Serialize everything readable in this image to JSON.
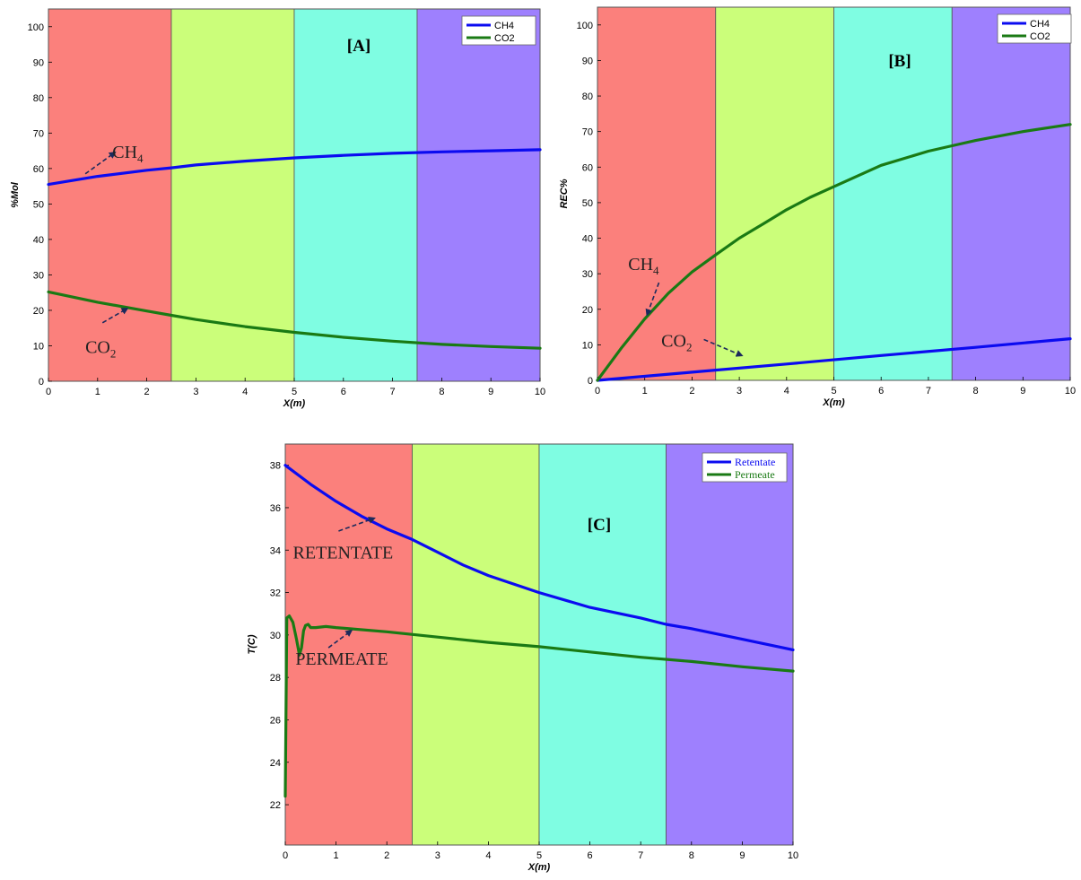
{
  "colors": {
    "zone1": "#fb807c",
    "zone2": "#cbfe7a",
    "zone3": "#7ffde2",
    "zone4": "#9e80fe",
    "ch4": "#0b0bf0",
    "co2": "#1a7a14",
    "arrow": "#1c2a5c"
  },
  "chart_data": [
    {
      "id": "A",
      "type": "line",
      "panel_label": "[A]",
      "xlabel": "X(m)",
      "ylabel": "%Mol",
      "xlim": [
        0,
        10
      ],
      "ylim": [
        0,
        105
      ],
      "xticks": [
        0,
        1,
        2,
        3,
        4,
        5,
        6,
        7,
        8,
        9,
        10
      ],
      "yticks": [
        0,
        10,
        20,
        30,
        40,
        50,
        60,
        70,
        80,
        90,
        100
      ],
      "zones": [
        0,
        2.5,
        5,
        7.5,
        10
      ],
      "legend": {
        "position": "top-right",
        "entries": [
          "CH4",
          "CO2"
        ]
      },
      "series": [
        {
          "name": "CH4",
          "color_key": "ch4",
          "x": [
            0,
            1,
            2,
            2.5,
            3,
            4,
            5,
            6,
            7,
            8,
            9,
            10
          ],
          "y": [
            55.5,
            57.8,
            59.5,
            60.2,
            61,
            62.1,
            63,
            63.7,
            64.3,
            64.7,
            65,
            65.3
          ]
        },
        {
          "name": "CO2",
          "color_key": "co2",
          "x": [
            0,
            1,
            2,
            2.5,
            3,
            4,
            5,
            6,
            7,
            8,
            9,
            10
          ],
          "y": [
            25.2,
            22.3,
            19.8,
            18.6,
            17.4,
            15.4,
            13.8,
            12.4,
            11.3,
            10.4,
            9.8,
            9.3
          ]
        }
      ],
      "annotations": [
        {
          "text": "CH",
          "sub": "4",
          "x": 1.3,
          "y": 63,
          "from": [
            0.75,
            58.5
          ],
          "to": [
            1.35,
            64.5
          ]
        },
        {
          "text": "CO",
          "sub": "2",
          "x": 0.75,
          "y": 8,
          "from": [
            1.1,
            16.5
          ],
          "to": [
            1.6,
            20.5
          ]
        }
      ]
    },
    {
      "id": "B",
      "type": "line",
      "panel_label": "[B]",
      "xlabel": "X(m)",
      "ylabel": "REC%",
      "xlim": [
        0,
        10
      ],
      "ylim": [
        0,
        105
      ],
      "xticks": [
        0,
        1,
        2,
        3,
        4,
        5,
        6,
        7,
        8,
        9,
        10
      ],
      "yticks": [
        0,
        10,
        20,
        30,
        40,
        50,
        60,
        70,
        80,
        90,
        100
      ],
      "zones": [
        0,
        2.5,
        5,
        7.5,
        10
      ],
      "legend": {
        "position": "top-right",
        "entries": [
          "CH4",
          "CO2"
        ]
      },
      "series": [
        {
          "name": "CH4",
          "color_key": "ch4",
          "x": [
            0,
            2,
            4,
            6,
            8,
            10
          ],
          "y": [
            0,
            2.3,
            4.6,
            7,
            9.3,
            11.7
          ]
        },
        {
          "name": "CO2",
          "color_key": "co2",
          "x": [
            0,
            0.5,
            1,
            1.5,
            2,
            2.5,
            3,
            3.5,
            4,
            4.5,
            5,
            6,
            7,
            7.5,
            8,
            9,
            10
          ],
          "y": [
            0,
            9,
            17.3,
            24.5,
            30.5,
            35.3,
            40,
            44,
            48,
            51.5,
            54.5,
            60.5,
            64.5,
            66,
            67.5,
            70,
            72
          ]
        }
      ],
      "annotations": [
        {
          "text": "CH",
          "sub": "4",
          "x": 0.65,
          "y": 31,
          "from": [
            1.3,
            27.5
          ],
          "to": [
            1.05,
            18.5
          ]
        },
        {
          "text": "CO",
          "sub": "2",
          "x": 1.35,
          "y": 9.5,
          "from": [
            2.25,
            11.5
          ],
          "to": [
            3.05,
            7
          ]
        }
      ]
    },
    {
      "id": "C",
      "type": "line",
      "panel_label": "[C]",
      "xlabel": "X(m)",
      "ylabel": "T(C)",
      "xlim": [
        0,
        10
      ],
      "ylim": [
        20.1,
        39
      ],
      "xticks": [
        0,
        1,
        2,
        3,
        4,
        5,
        6,
        7,
        8,
        9,
        10
      ],
      "yticks": [
        22,
        24,
        26,
        28,
        30,
        32,
        34,
        36,
        38
      ],
      "zones": [
        0,
        2.5,
        5,
        7.5,
        10
      ],
      "legend": {
        "position": "top-right",
        "entries": [
          "Retentate",
          "Permeate"
        ]
      },
      "series": [
        {
          "name": "Retentate",
          "color_key": "ch4",
          "x": [
            0,
            0.5,
            1,
            1.5,
            2,
            2.5,
            3,
            3.5,
            4,
            4.5,
            5,
            6,
            7,
            7.5,
            8,
            9,
            10
          ],
          "y": [
            38,
            37.1,
            36.3,
            35.6,
            35,
            34.5,
            33.9,
            33.3,
            32.8,
            32.4,
            32,
            31.3,
            30.8,
            30.5,
            30.3,
            29.8,
            29.3
          ]
        },
        {
          "name": "Permeate",
          "color_key": "co2",
          "x": [
            0,
            0.03,
            0.08,
            0.15,
            0.22,
            0.28,
            0.32,
            0.36,
            0.4,
            0.45,
            0.5,
            0.6,
            0.8,
            1,
            2,
            3,
            4,
            5,
            6,
            7,
            8,
            9,
            10
          ],
          "y": [
            22.4,
            30.8,
            30.9,
            30.6,
            29.8,
            29.05,
            29.4,
            30.2,
            30.45,
            30.5,
            30.35,
            30.35,
            30.4,
            30.35,
            30.15,
            29.9,
            29.65,
            29.45,
            29.2,
            28.95,
            28.75,
            28.5,
            28.3
          ]
        }
      ],
      "annotations": [
        {
          "text": "RETENTATE",
          "sub": "",
          "x": 0.15,
          "y": 33.6,
          "from": [
            1.05,
            34.9
          ],
          "to": [
            1.75,
            35.5
          ]
        },
        {
          "text": "PERMEATE",
          "sub": "",
          "x": 0.2,
          "y": 28.6,
          "from": [
            0.85,
            29.4
          ],
          "to": [
            1.3,
            30.2
          ]
        }
      ]
    }
  ]
}
